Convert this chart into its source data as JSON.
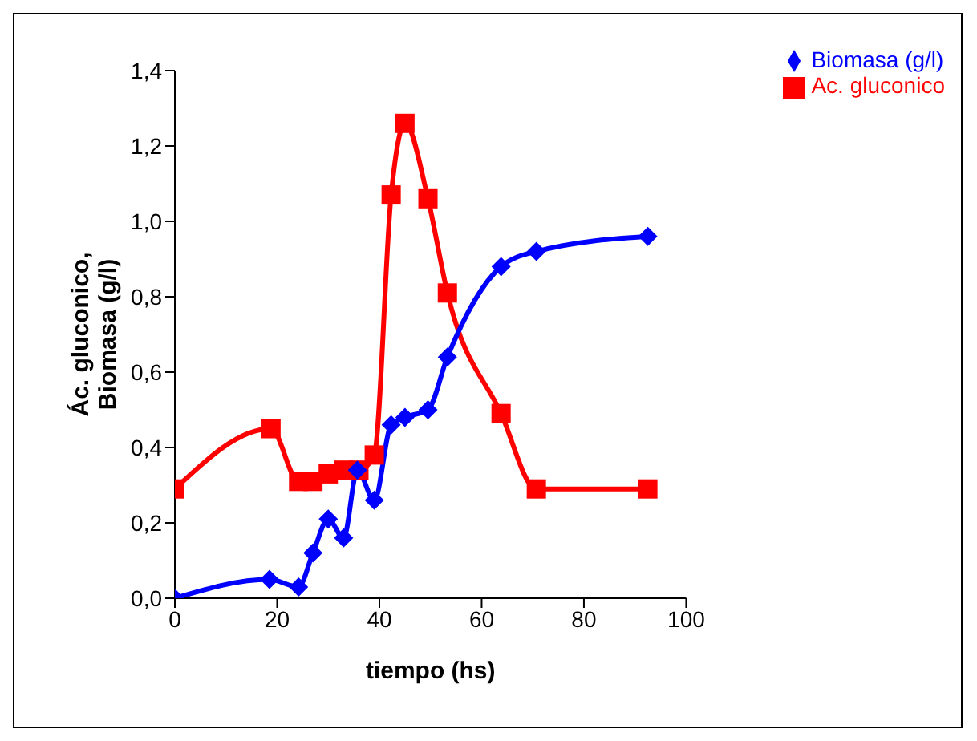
{
  "chart_data": {
    "type": "line",
    "xlabel": "tiempo (hs)",
    "ylabel": "Ác. gluconico, Biomasa (g/l)",
    "xlim": [
      0,
      100
    ],
    "xticks": [
      0,
      20,
      40,
      60,
      80,
      100
    ],
    "ylim": [
      0,
      1.4
    ],
    "yticks": [
      {
        "value": 0,
        "label": "0,0"
      },
      {
        "value": 0.2,
        "label": "0,2"
      },
      {
        "value": 0.4,
        "label": "0,4"
      },
      {
        "value": 0.6,
        "label": "0,6"
      },
      {
        "value": 0.8,
        "label": "0,8"
      },
      {
        "value": 1,
        "label": "1,0"
      },
      {
        "value": 1.2,
        "label": "1,2"
      },
      {
        "value": 1.4,
        "label": "1,4"
      }
    ],
    "grid": false,
    "legend": "top right",
    "line_style": "solid",
    "series": [
      {
        "name": "Biomasa (g/l)",
        "color": "#0000ff",
        "marker": "diamond",
        "x": [
          0,
          18.5,
          24.2,
          27,
          30,
          33,
          35.7,
          39,
          42.3,
          45,
          49.5,
          53.3,
          63.8,
          70.7,
          92.5
        ],
        "values": [
          0,
          0.05,
          0.03,
          0.12,
          0.21,
          0.16,
          0.34,
          0.26,
          0.46,
          0.48,
          0.5,
          0.64,
          0.88,
          0.92,
          0.96
        ]
      },
      {
        "name": "Ac. gluconico",
        "color": "#ff0000",
        "marker": "square",
        "x": [
          0,
          18.8,
          24.2,
          27,
          30,
          33,
          36,
          39,
          42.3,
          45,
          49.5,
          53.3,
          63.8,
          70.7,
          92.5
        ],
        "values": [
          0.29,
          0.45,
          0.31,
          0.31,
          0.33,
          0.34,
          0.34,
          0.38,
          1.07,
          1.26,
          1.06,
          0.81,
          0.49,
          0.29,
          0.29
        ]
      }
    ]
  }
}
